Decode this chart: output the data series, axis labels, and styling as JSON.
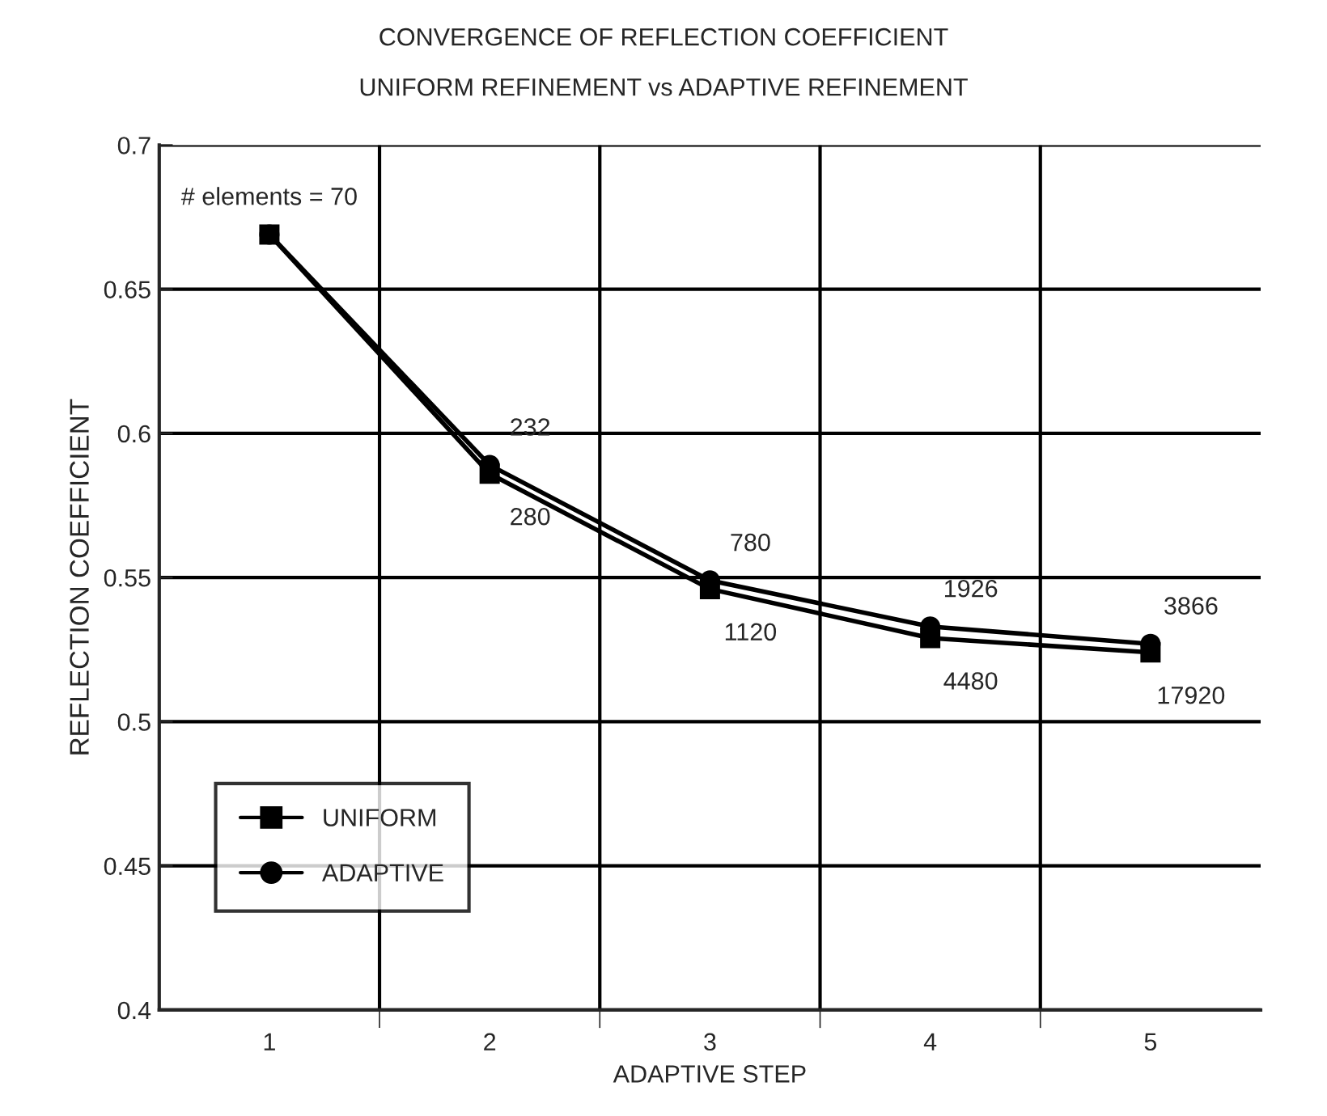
{
  "chart_data": {
    "type": "line",
    "title": "CONVERGENCE OF REFLECTION COEFFICIENT\nUNIFORM REFINEMENT vs ADAPTIVE REFINEMENT",
    "xlabel": "ADAPTIVE STEP",
    "ylabel": "REFLECTION COEFFICIENT",
    "categories": [
      "1",
      "2",
      "3",
      "4",
      "5"
    ],
    "series": [
      {
        "name": "UNIFORM",
        "color": "#000000",
        "marker": "square",
        "values": [
          0.669,
          0.586,
          0.546,
          0.529,
          0.524
        ]
      },
      {
        "name": "ADAPTIVE",
        "color": "#000000",
        "marker": "circle",
        "values": [
          0.669,
          0.589,
          0.549,
          0.533,
          0.527
        ]
      }
    ],
    "ylim": [
      0.4,
      0.7
    ],
    "yticks": [
      0.4,
      0.45,
      0.5,
      0.55,
      0.6,
      0.65,
      0.7
    ],
    "grid": true,
    "legend": "bottom left",
    "line_style": "solid",
    "annotations": [
      {
        "text": "# elements = 70",
        "x": "1",
        "y": 0.669
      },
      {
        "text": "232",
        "x": "2",
        "y": 0.589
      },
      {
        "text": "280",
        "x": "2",
        "y": 0.586
      },
      {
        "text": "780",
        "x": "3",
        "y": 0.549
      },
      {
        "text": "1120",
        "x": "3",
        "y": 0.546
      },
      {
        "text": "1926",
        "x": "4",
        "y": 0.533
      },
      {
        "text": "4480",
        "x": "4",
        "y": 0.529
      },
      {
        "text": "3866",
        "x": "5",
        "y": 0.527
      },
      {
        "text": "17920",
        "x": "5",
        "y": 0.524
      }
    ]
  }
}
